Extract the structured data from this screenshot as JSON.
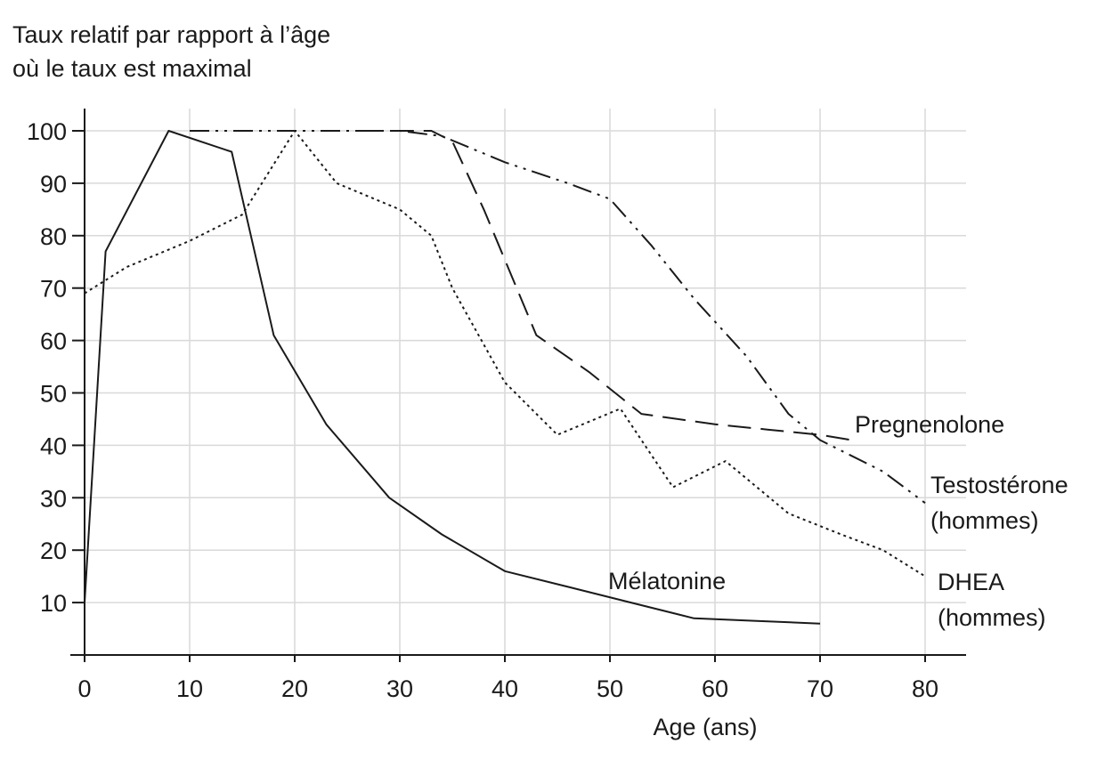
{
  "chart_data": {
    "type": "line",
    "ylabel_lines": [
      "Taux relatif par rapport à l’âge",
      "où le taux est maximal"
    ],
    "xlabel": "Age (ans)",
    "xlim": [
      0,
      84
    ],
    "ylim": [
      0,
      103
    ],
    "x_ticks": [
      0,
      10,
      20,
      30,
      40,
      50,
      60,
      70,
      80
    ],
    "y_ticks": [
      10,
      20,
      30,
      40,
      50,
      60,
      70,
      80,
      90,
      100
    ],
    "grid": true,
    "series": [
      {
        "name": "Mélatonine",
        "label_lines": [
          "Mélatonine"
        ],
        "style": "solid",
        "points": [
          [
            0,
            10
          ],
          [
            2,
            77
          ],
          [
            8,
            100
          ],
          [
            14,
            96
          ],
          [
            18,
            61
          ],
          [
            23,
            44
          ],
          [
            29,
            30
          ],
          [
            34,
            23
          ],
          [
            40,
            16
          ],
          [
            46,
            13
          ],
          [
            52,
            10
          ],
          [
            58,
            7
          ],
          [
            64,
            6.5
          ],
          [
            70,
            6
          ]
        ]
      },
      {
        "name": "Pregnenolone",
        "label_lines": [
          "Pregnenolone"
        ],
        "style": "dashed",
        "points": [
          [
            26,
            100
          ],
          [
            33,
            100
          ],
          [
            35,
            98
          ],
          [
            38,
            85
          ],
          [
            43,
            61
          ],
          [
            48,
            54
          ],
          [
            53,
            46
          ],
          [
            60,
            44
          ],
          [
            65,
            43
          ],
          [
            70,
            42
          ],
          [
            73,
            41
          ]
        ]
      },
      {
        "name": "Testostérone (hommes)",
        "label_lines": [
          "Testostérone",
          "(hommes)"
        ],
        "style": "dashdotdot",
        "points": [
          [
            10,
            100
          ],
          [
            30,
            100
          ],
          [
            34,
            99
          ],
          [
            40,
            94
          ],
          [
            46,
            90
          ],
          [
            50,
            87
          ],
          [
            54,
            78
          ],
          [
            58,
            68
          ],
          [
            63,
            57
          ],
          [
            67,
            46
          ],
          [
            70,
            41
          ],
          [
            76,
            35
          ],
          [
            80,
            29
          ]
        ]
      },
      {
        "name": "DHEA (hommes)",
        "label_lines": [
          "DHEA",
          "(hommes)"
        ],
        "style": "dotted",
        "points": [
          [
            0,
            69
          ],
          [
            4,
            74
          ],
          [
            10,
            79
          ],
          [
            15,
            84
          ],
          [
            20,
            100
          ],
          [
            24,
            90
          ],
          [
            30,
            85
          ],
          [
            33,
            80
          ],
          [
            35,
            70
          ],
          [
            40,
            52
          ],
          [
            45,
            42
          ],
          [
            51,
            47
          ],
          [
            56,
            32
          ],
          [
            61,
            37
          ],
          [
            67,
            27
          ],
          [
            72,
            23
          ],
          [
            76,
            20
          ],
          [
            80,
            15
          ]
        ]
      }
    ]
  }
}
